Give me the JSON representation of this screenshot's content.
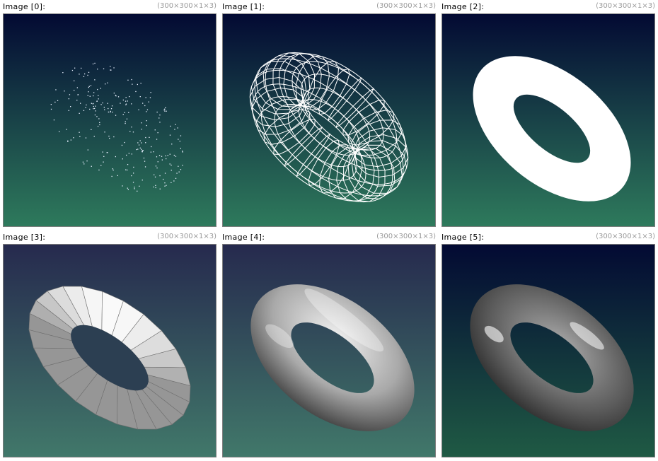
{
  "images": [
    {
      "label": "Image [0]:",
      "dims": "(300×300×1×3)",
      "render": "points"
    },
    {
      "label": "Image [1]:",
      "dims": "(300×300×1×3)",
      "render": "wireframe"
    },
    {
      "label": "Image [2]:",
      "dims": "(300×300×1×3)",
      "render": "flat-white"
    },
    {
      "label": "Image [3]:",
      "dims": "(300×300×1×3)",
      "render": "flat-shaded"
    },
    {
      "label": "Image [4]:",
      "dims": "(300×300×1×3)",
      "render": "gouraud"
    },
    {
      "label": "Image [5]:",
      "dims": "(300×300×1×3)",
      "render": "phong"
    }
  ],
  "colors": {
    "bg_top_dark": "#030a33",
    "bg_bottom_green": "#2e7a5c",
    "bg_top_slate": "#262a4e",
    "bg_bottom_teal": "#41786a",
    "bg_bottom_deep": "#1f5a44",
    "border": "#7f7f7f",
    "dims_text": "#9a9a9a"
  }
}
